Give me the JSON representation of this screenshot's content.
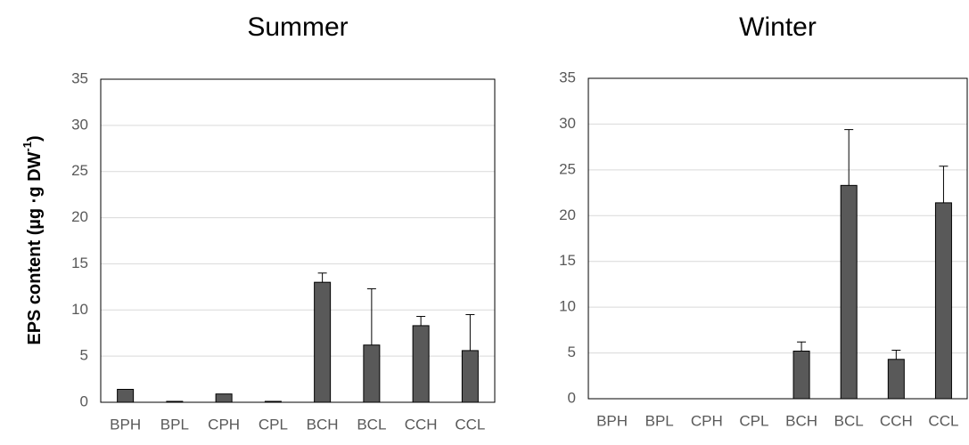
{
  "chart_data": [
    {
      "type": "bar",
      "title": "Summer",
      "y_label": {
        "text": "EPS content (µg ·g DW",
        "superscript": "-1",
        "suffix": ")"
      },
      "categories": [
        "BPH",
        "BPL",
        "CPH",
        "CPL",
        "BCH",
        "BCL",
        "CCH",
        "CCL"
      ],
      "values": [
        1.4,
        0.1,
        0.9,
        0.1,
        13.0,
        6.2,
        8.3,
        5.6
      ],
      "errors": [
        0,
        0,
        0,
        0,
        1.0,
        6.1,
        1.0,
        3.9
      ],
      "color": "#595959",
      "ylim": [
        0,
        35
      ],
      "yticks": [
        0,
        5,
        10,
        15,
        20,
        25,
        30,
        35
      ],
      "grid": true
    },
    {
      "type": "bar",
      "title": "Winter",
      "categories": [
        "BPH",
        "BPL",
        "CPH",
        "CPL",
        "BCH",
        "BCL",
        "CCH",
        "CCL"
      ],
      "values": [
        0,
        0,
        0,
        0,
        5.2,
        23.3,
        4.3,
        21.4
      ],
      "errors": [
        0,
        0,
        0,
        0,
        1.0,
        6.1,
        1.0,
        4.0
      ],
      "color": "#595959",
      "ylim": [
        0,
        35
      ],
      "yticks": [
        0,
        5,
        10,
        15,
        20,
        25,
        30,
        35
      ],
      "grid": true
    }
  ]
}
